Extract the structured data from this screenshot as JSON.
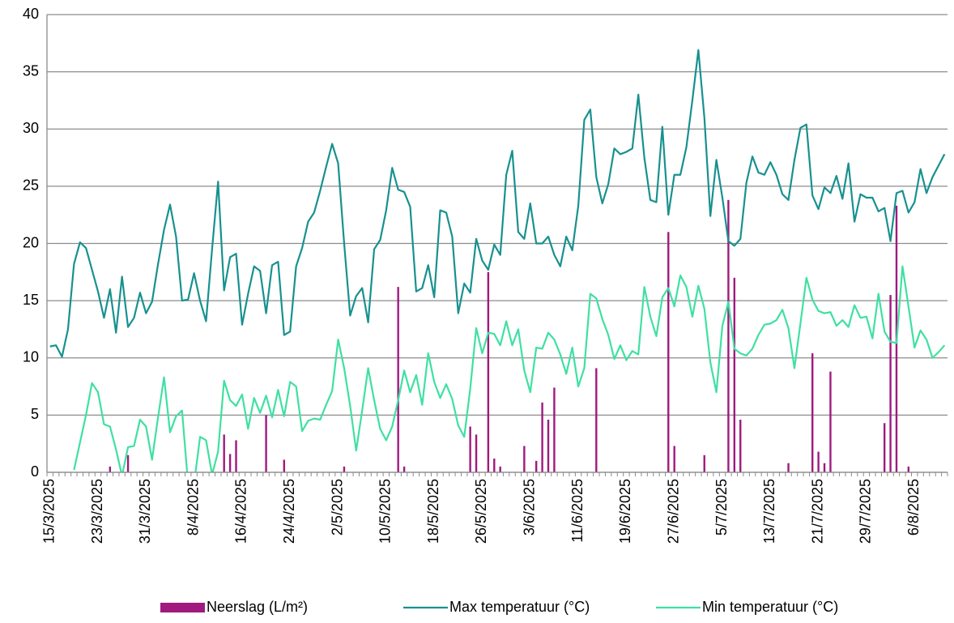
{
  "chart_data": {
    "type": "combo",
    "legend": "bottom",
    "grid": true,
    "ylim": [
      0,
      40
    ],
    "yticks": [
      0,
      5,
      10,
      15,
      20,
      25,
      30,
      35,
      40
    ],
    "categories": [
      "15/3/2025",
      null,
      null,
      null,
      null,
      null,
      null,
      null,
      "23/3/2025",
      null,
      null,
      null,
      null,
      null,
      null,
      null,
      "31/3/2025",
      null,
      null,
      null,
      null,
      null,
      null,
      null,
      "8/4/2025",
      null,
      null,
      null,
      null,
      null,
      null,
      null,
      "16/4/2025",
      null,
      null,
      null,
      null,
      null,
      null,
      null,
      "24/4/2025",
      null,
      null,
      null,
      null,
      null,
      null,
      null,
      "2/5/2025",
      null,
      null,
      null,
      null,
      null,
      null,
      null,
      "10/5/2025",
      null,
      null,
      null,
      null,
      null,
      null,
      null,
      "18/5/2025",
      null,
      null,
      null,
      null,
      null,
      null,
      null,
      "26/5/2025",
      null,
      null,
      null,
      null,
      null,
      null,
      null,
      "3/6/2025",
      null,
      null,
      null,
      null,
      null,
      null,
      null,
      "11/6/2025",
      null,
      null,
      null,
      null,
      null,
      null,
      null,
      "19/6/2025",
      null,
      null,
      null,
      null,
      null,
      null,
      null,
      "27/6/2025",
      null,
      null,
      null,
      null,
      null,
      null,
      null,
      "5/7/2025",
      null,
      null,
      null,
      null,
      null,
      null,
      null,
      "13/7/2025",
      null,
      null,
      null,
      null,
      null,
      null,
      null,
      "21/7/2025",
      null,
      null,
      null,
      null,
      null,
      null,
      null,
      "29/7/2025",
      null,
      null,
      null,
      null,
      null,
      null,
      null,
      "6/8/2025",
      null,
      null,
      null,
      null,
      null
    ],
    "series": [
      {
        "name": "Neerslag (L/m²)",
        "type": "bar",
        "color": "#a0197f",
        "values": [
          0,
          0,
          0,
          0,
          0,
          0,
          0,
          0,
          0,
          0,
          0.5,
          0,
          0,
          1.5,
          0,
          0,
          0,
          0,
          0,
          0,
          0,
          0,
          0,
          0,
          0,
          0,
          0,
          0,
          0,
          3.3,
          1.6,
          2.8,
          0,
          0,
          0,
          0,
          5.0,
          0,
          0,
          1.1,
          0,
          0,
          0,
          0,
          0,
          0,
          0,
          0,
          0,
          0.5,
          0,
          0,
          0,
          0,
          0,
          0,
          0,
          0,
          16.2,
          0.5,
          0,
          0,
          0,
          0,
          0,
          0,
          0,
          0,
          0,
          0,
          4.0,
          3.3,
          0,
          17.5,
          1.2,
          0.5,
          0,
          0,
          0,
          2.3,
          0,
          1.0,
          6.1,
          4.6,
          7.4,
          0,
          0,
          0,
          0,
          0,
          0,
          9.1,
          0,
          0,
          0,
          0,
          0,
          0,
          0,
          0,
          0,
          0,
          0,
          21.0,
          2.3,
          0,
          0,
          0,
          0,
          1.5,
          0,
          0,
          0,
          23.8,
          17.0,
          4.6,
          0,
          0,
          0,
          0,
          0,
          0,
          0,
          0.8,
          0,
          0,
          0,
          10.4,
          1.8,
          0.8,
          8.8,
          0,
          0,
          0,
          0,
          0,
          0,
          0,
          0,
          4.3,
          15.5,
          23.3,
          0,
          0.5,
          0,
          0,
          0,
          0,
          0,
          0
        ]
      },
      {
        "name": "Max temperatuur (°C)",
        "type": "line",
        "color": "#17918f",
        "values": [
          11.0,
          11.1,
          10.1,
          12.5,
          18.2,
          20.1,
          19.6,
          17.7,
          15.8,
          13.5,
          16.0,
          12.2,
          17.1,
          12.7,
          13.5,
          15.7,
          13.9,
          14.9,
          18.2,
          21.2,
          23.4,
          20.6,
          15.0,
          15.1,
          17.4,
          15.0,
          13.2,
          19.5,
          25.4,
          15.9,
          18.8,
          19.1,
          12.9,
          15.6,
          18.0,
          17.6,
          13.9,
          18.1,
          18.4,
          12.0,
          12.3,
          18.0,
          19.6,
          21.9,
          22.7,
          24.6,
          26.7,
          28.7,
          27.0,
          20.0,
          13.7,
          15.4,
          16.1,
          13.1,
          19.5,
          20.3,
          22.9,
          26.6,
          24.7,
          24.5,
          23.2,
          15.8,
          16.1,
          18.1,
          15.3,
          22.9,
          22.7,
          20.6,
          13.9,
          16.5,
          15.7,
          20.4,
          18.5,
          17.7,
          19.9,
          19.0,
          26.0,
          28.1,
          21.0,
          20.4,
          23.5,
          20.0,
          20.0,
          20.6,
          19.0,
          18.0,
          20.6,
          19.4,
          23.3,
          30.8,
          31.7,
          25.8,
          23.5,
          25.2,
          28.3,
          27.8,
          28.0,
          28.3,
          33.0,
          27.5,
          23.8,
          23.6,
          30.2,
          22.5,
          26.0,
          26.0,
          28.4,
          32.5,
          36.9,
          31.0,
          22.4,
          27.3,
          24.0,
          20.2,
          19.8,
          20.4,
          25.3,
          27.6,
          26.2,
          26.0,
          27.1,
          26.0,
          24.3,
          23.8,
          27.3,
          30.1,
          30.4,
          24.2,
          23.0,
          24.9,
          24.4,
          25.9,
          23.9,
          27.0,
          21.9,
          24.3,
          24.0,
          24.0,
          22.8,
          23.1,
          20.2,
          24.4,
          24.6,
          22.7,
          23.6,
          26.5,
          24.4,
          25.8,
          26.8,
          27.8
        ]
      },
      {
        "name": "Min temperatuur (°C)",
        "type": "line",
        "color": "#3fe0a2",
        "values": [
          null,
          null,
          null,
          null,
          0.2,
          2.6,
          5.0,
          7.8,
          7.0,
          4.2,
          4.0,
          2.0,
          -0.3,
          2.2,
          2.3,
          4.6,
          4.0,
          1.1,
          4.8,
          8.3,
          3.5,
          4.9,
          5.4,
          -1.0,
          -1.0,
          3.1,
          2.8,
          -0.2,
          1.8,
          8.0,
          6.3,
          5.8,
          6.8,
          3.8,
          6.5,
          5.2,
          6.7,
          4.8,
          7.2,
          4.9,
          7.9,
          7.5,
          3.6,
          4.5,
          4.7,
          4.6,
          5.9,
          7.1,
          11.6,
          9.1,
          5.8,
          1.9,
          5.4,
          9.1,
          6.3,
          3.8,
          2.8,
          4.0,
          6.3,
          8.9,
          7.0,
          8.5,
          5.9,
          10.4,
          7.9,
          6.5,
          7.7,
          6.4,
          4.1,
          3.1,
          7.3,
          12.6,
          10.4,
          12.2,
          12.1,
          11.1,
          13.2,
          11.1,
          12.5,
          8.9,
          7.0,
          10.9,
          10.8,
          12.2,
          11.6,
          10.3,
          8.6,
          10.9,
          7.5,
          9.1,
          15.6,
          15.2,
          13.4,
          12.0,
          9.9,
          11.1,
          9.8,
          10.6,
          10.3,
          16.2,
          13.6,
          11.9,
          15.3,
          16.1,
          14.5,
          17.2,
          16.2,
          13.6,
          16.3,
          14.3,
          9.6,
          7.0,
          12.8,
          14.9,
          10.8,
          10.4,
          10.2,
          10.8,
          12.0,
          12.9,
          13.0,
          13.3,
          14.2,
          12.6,
          9.1,
          13.0,
          17.0,
          15.1,
          14.1,
          13.9,
          14.0,
          12.8,
          13.3,
          12.7,
          14.6,
          13.5,
          13.6,
          11.7,
          15.6,
          12.3,
          11.4,
          11.3,
          18.0,
          14.5,
          10.9,
          12.4,
          11.6,
          10.0,
          10.5,
          11.1
        ]
      }
    ]
  }
}
